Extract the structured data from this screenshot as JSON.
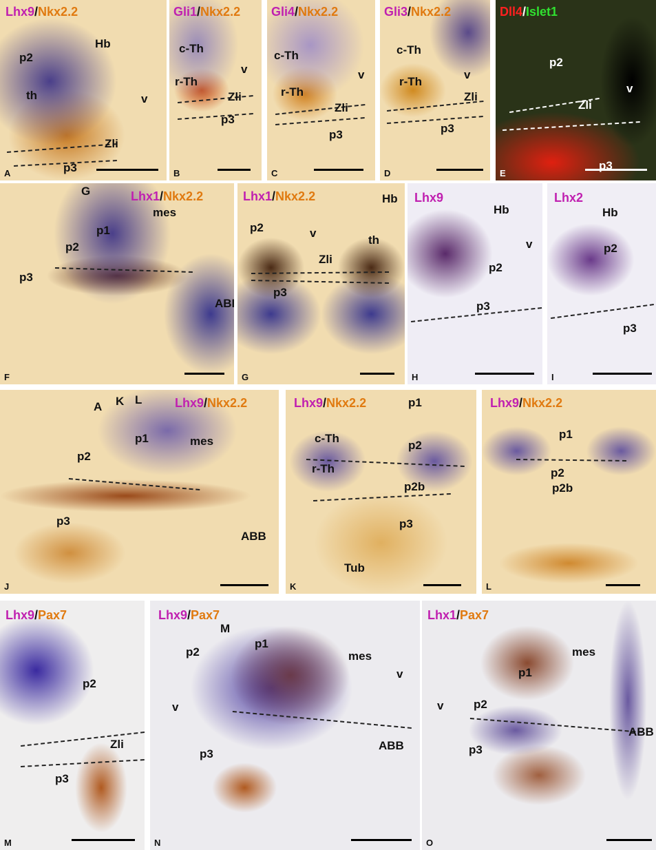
{
  "panels": [
    {
      "letter": "A",
      "title": [
        "Lhx9",
        "/",
        "Nkx2.2"
      ],
      "labels": [
        "p2",
        "Hb",
        "th",
        "v",
        "Zli",
        "p3"
      ]
    },
    {
      "letter": "B",
      "title": [
        "Gli1",
        "/",
        "Nkx2.2"
      ],
      "labels": [
        "c-Th",
        "v",
        "r-Th",
        "Zli",
        "p3"
      ]
    },
    {
      "letter": "C",
      "title": [
        "Gli4",
        "/",
        "Nkx2.2"
      ],
      "labels": [
        "c-Th",
        "v",
        "r-Th",
        "Zli",
        "p3"
      ]
    },
    {
      "letter": "D",
      "title": [
        "Gli3",
        "/",
        "Nkx2.2"
      ],
      "labels": [
        "c-Th",
        "v",
        "r-Th",
        "Zli",
        "p3"
      ]
    },
    {
      "letter": "E",
      "title": [
        "Dll4",
        "/",
        "Islet1"
      ],
      "labels": [
        "p2",
        "v",
        "Zli",
        "p3"
      ]
    },
    {
      "letter": "F",
      "title": [
        "Lhx1",
        "/",
        "Nkx2.2"
      ],
      "labels": [
        "G",
        "p1",
        "mes",
        "p2",
        "p3",
        "ABB"
      ]
    },
    {
      "letter": "G",
      "title": [
        "Lhx1",
        "/",
        "Nkx2.2"
      ],
      "labels": [
        "Hb",
        "p2",
        "v",
        "th",
        "Zli",
        "p3"
      ]
    },
    {
      "letter": "H",
      "title": [
        "Lhx9"
      ],
      "labels": [
        "Hb",
        "v",
        "p2",
        "p3"
      ]
    },
    {
      "letter": "I",
      "title": [
        "Lhx2"
      ],
      "labels": [
        "Hb",
        "p2",
        "p3"
      ]
    },
    {
      "letter": "J",
      "title": [
        "Lhx9",
        "/",
        "Nkx2.2"
      ],
      "labels": [
        "A",
        "K",
        "L",
        "p1",
        "mes",
        "p2",
        "p3",
        "ABB"
      ]
    },
    {
      "letter": "K",
      "title": [
        "Lhx9",
        "/",
        "Nkx2.2"
      ],
      "labels": [
        "p1",
        "c-Th",
        "p2",
        "r-Th",
        "p2b",
        "p3",
        "Tub"
      ]
    },
    {
      "letter": "L",
      "title": [
        "Lhx9",
        "/",
        "Nkx2.2"
      ],
      "labels": [
        "p1",
        "p2",
        "p2b"
      ]
    },
    {
      "letter": "M",
      "title": [
        "Lhx9",
        "/",
        "Pax7"
      ],
      "labels": [
        "p2",
        "Zli",
        "p3"
      ]
    },
    {
      "letter": "N",
      "title": [
        "Lhx9",
        "/",
        "Pax7"
      ],
      "labels": [
        "M",
        "p2",
        "p1",
        "mes",
        "v",
        "v",
        "p3",
        "ABB"
      ]
    },
    {
      "letter": "O",
      "title": [
        "Lhx1",
        "/",
        "Pax7"
      ],
      "labels": [
        "mes",
        "p1",
        "v",
        "p2",
        "ABB",
        "p3"
      ]
    }
  ]
}
